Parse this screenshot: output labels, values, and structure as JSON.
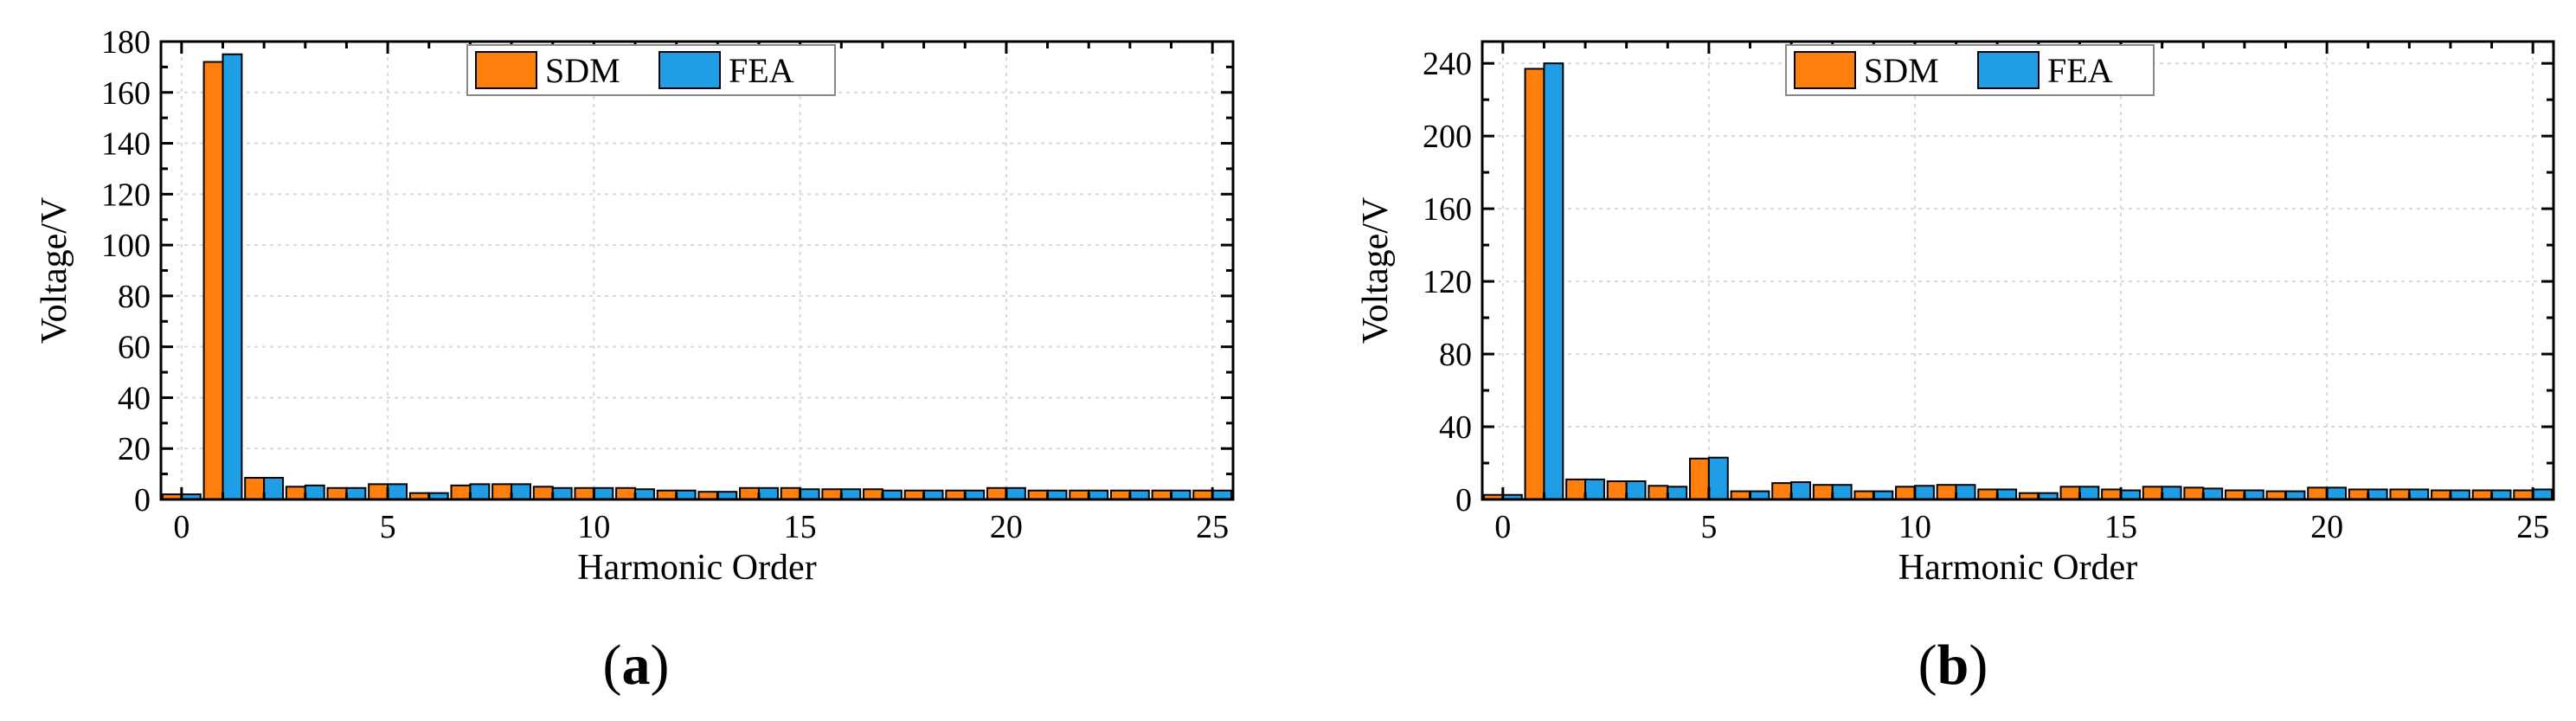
{
  "panel_labels": [
    "(a)",
    "(b)"
  ],
  "colors": {
    "SDM": "#ff7f0e",
    "FEA": "#1f9ee6",
    "axis": "#000000",
    "grid": "#d9d9d9"
  },
  "chart_data": [
    {
      "type": "bar",
      "panel": "(a)",
      "xlabel": "Harmonic Order",
      "ylabel": "Voltage/V",
      "x": [
        0,
        1,
        2,
        3,
        4,
        5,
        6,
        7,
        8,
        9,
        10,
        11,
        12,
        13,
        14,
        15,
        16,
        17,
        18,
        19,
        20,
        21,
        22,
        23,
        24,
        25
      ],
      "xticks": [
        0,
        5,
        10,
        15,
        20,
        25
      ],
      "xlim": [
        -0.5,
        25.5
      ],
      "yticks": [
        0,
        20,
        40,
        60,
        80,
        100,
        120,
        140,
        160,
        180
      ],
      "ylim": [
        0,
        180
      ],
      "grid": true,
      "legend_position": "top-center",
      "series": [
        {
          "name": "SDM",
          "values": [
            2,
            172,
            8.5,
            5,
            4.5,
            6,
            2.5,
            5.5,
            6,
            5,
            4.5,
            4.5,
            3.5,
            3,
            4.5,
            4.5,
            4,
            4,
            3.5,
            3.5,
            4.5,
            3.5,
            3.5,
            3.5,
            3.5,
            3.5
          ]
        },
        {
          "name": "FEA",
          "values": [
            2,
            175,
            8.5,
            5.5,
            4.5,
            6,
            2.5,
            6,
            6,
            4.5,
            4.5,
            4,
            3.5,
            3,
            4.5,
            4,
            4,
            3.5,
            3.5,
            3.5,
            4.5,
            3.5,
            3.5,
            3.5,
            3.5,
            3.5
          ]
        }
      ]
    },
    {
      "type": "bar",
      "panel": "(b)",
      "xlabel": "Harmonic Order",
      "ylabel": "Voltage/V",
      "x": [
        0,
        1,
        2,
        3,
        4,
        5,
        6,
        7,
        8,
        9,
        10,
        11,
        12,
        13,
        14,
        15,
        16,
        17,
        18,
        19,
        20,
        21,
        22,
        23,
        24,
        25
      ],
      "xticks": [
        0,
        5,
        10,
        15,
        20,
        25
      ],
      "xlim": [
        -0.5,
        25.5
      ],
      "yticks": [
        0,
        40,
        80,
        120,
        160,
        200,
        240
      ],
      "ylim": [
        0,
        252
      ],
      "grid": true,
      "legend_position": "top-center",
      "series": [
        {
          "name": "SDM",
          "values": [
            2.5,
            237,
            11,
            10,
            7.5,
            22.5,
            4.5,
            9,
            8,
            4.5,
            7,
            8,
            5.5,
            3.5,
            7,
            5.5,
            7,
            6.5,
            5,
            4.5,
            6.5,
            5.5,
            5.5,
            5,
            5,
            5
          ]
        },
        {
          "name": "FEA",
          "values": [
            2.5,
            240,
            11,
            10,
            7,
            23,
            4.5,
            9.5,
            8,
            4.5,
            7.5,
            8,
            5.5,
            3.5,
            7,
            5,
            7,
            6,
            5,
            4.5,
            6.5,
            5.5,
            5.5,
            5,
            5,
            5.5
          ]
        }
      ]
    }
  ]
}
